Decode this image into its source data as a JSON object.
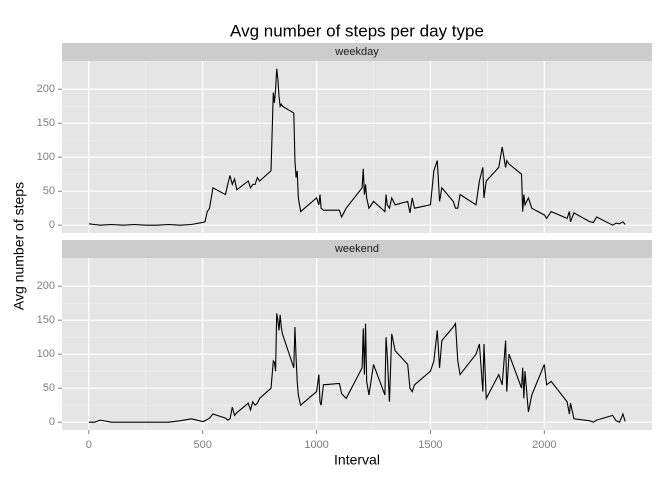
{
  "chart_data": {
    "type": "line",
    "title": "Avg number of steps per day type",
    "x_label": "Interval",
    "y_label": "Avg number of steps",
    "xlim": [
      -117.75,
      2472.75
    ],
    "xticks": [
      0,
      500,
      1000,
      1500,
      2000
    ],
    "ylim": [
      -11.5,
      241.5
    ],
    "yticks": [
      0,
      50,
      100,
      150,
      200
    ],
    "grid": true,
    "minor_grid": true,
    "x": [
      0,
      25,
      50,
      100,
      150,
      200,
      250,
      300,
      350,
      400,
      450,
      500,
      510,
      520,
      530,
      545,
      600,
      610,
      620,
      630,
      640,
      650,
      700,
      710,
      720,
      730,
      740,
      750,
      800,
      810,
      815,
      820,
      825,
      830,
      835,
      840,
      845,
      850,
      900,
      905,
      910,
      915,
      920,
      930,
      1000,
      1010,
      1015,
      1020,
      1030,
      1100,
      1110,
      1130,
      1200,
      1205,
      1210,
      1215,
      1220,
      1230,
      1250,
      1300,
      1305,
      1310,
      1320,
      1330,
      1345,
      1400,
      1410,
      1420,
      1430,
      1500,
      1515,
      1530,
      1540,
      1550,
      1600,
      1610,
      1620,
      1630,
      1700,
      1715,
      1730,
      1735,
      1745,
      1800,
      1815,
      1830,
      1835,
      1845,
      1900,
      1905,
      1910,
      1915,
      1930,
      1945,
      2000,
      2010,
      2030,
      2100,
      2110,
      2115,
      2130,
      2200,
      2215,
      2230,
      2300,
      2315,
      2330,
      2345,
      2355
    ],
    "series": [
      {
        "name": "weekday",
        "color": "#000000",
        "values": [
          2,
          1,
          0,
          1,
          0,
          1,
          0,
          0,
          1,
          0,
          1,
          4,
          5,
          20,
          25,
          55,
          45,
          60,
          73,
          60,
          68,
          52,
          65,
          55,
          60,
          60,
          70,
          65,
          80,
          195,
          180,
          200,
          230,
          215,
          190,
          175,
          178,
          175,
          165,
          95,
          70,
          80,
          40,
          20,
          40,
          30,
          45,
          25,
          22,
          22,
          12,
          25,
          55,
          83,
          45,
          60,
          40,
          25,
          35,
          20,
          45,
          30,
          25,
          40,
          30,
          35,
          18,
          40,
          25,
          30,
          80,
          95,
          35,
          55,
          35,
          25,
          25,
          45,
          30,
          65,
          85,
          40,
          65,
          85,
          115,
          85,
          95,
          90,
          75,
          20,
          45,
          30,
          40,
          25,
          15,
          10,
          20,
          10,
          20,
          5,
          18,
          5,
          4,
          12,
          0,
          3,
          2,
          5,
          1
        ]
      },
      {
        "name": "weekend",
        "color": "#000000",
        "values": [
          0,
          0,
          3,
          0,
          0,
          0,
          0,
          0,
          0,
          2,
          5,
          1,
          2,
          4,
          6,
          12,
          6,
          3,
          5,
          22,
          10,
          14,
          28,
          18,
          30,
          25,
          28,
          35,
          50,
          90,
          88,
          75,
          160,
          150,
          135,
          158,
          140,
          130,
          80,
          140,
          95,
          60,
          40,
          25,
          45,
          70,
          30,
          25,
          55,
          57,
          42,
          35,
          80,
          138,
          70,
          145,
          60,
          40,
          85,
          40,
          125,
          100,
          30,
          130,
          105,
          85,
          50,
          45,
          55,
          75,
          90,
          135,
          80,
          120,
          140,
          145,
          90,
          70,
          100,
          115,
          45,
          115,
          35,
          70,
          55,
          120,
          45,
          100,
          50,
          80,
          35,
          75,
          15,
          40,
          85,
          55,
          60,
          30,
          12,
          28,
          5,
          2,
          0,
          3,
          10,
          2,
          0,
          12,
          1
        ]
      }
    ]
  }
}
